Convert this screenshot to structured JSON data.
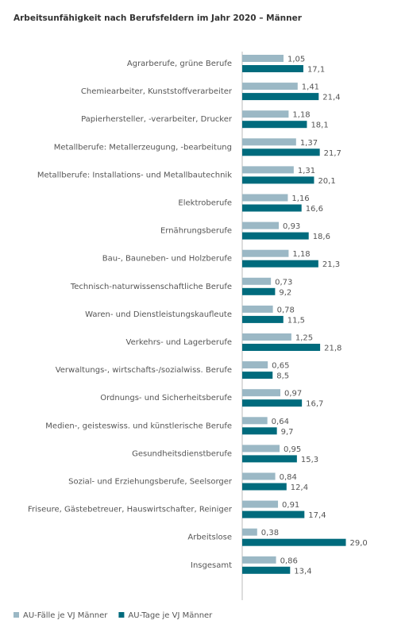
{
  "chart_data": {
    "type": "bar",
    "orientation": "horizontal",
    "title": "Arbeitsunfähigkeit nach Berufsfeldern im Jahr 2020 – Männer",
    "categories": [
      "Agrarberufe, grüne Berufe",
      "Chemiearbeiter, Kunststoffverarbeiter",
      "Papierhersteller, -verarbeiter, Drucker",
      "Metallberufe: Metallerzeugung, -bearbeitung",
      "Metallberufe: Installations- und Metallbautechnik",
      "Elektroberufe",
      "Ernährungsberufe",
      "Bau-, Bauneben- und Holzberufe",
      "Technisch-naturwissenschaftliche Berufe",
      "Waren- und Dienstleistungskaufleute",
      "Verkehrs- und Lagerberufe",
      "Verwaltungs-, wirtschafts-/sozialwiss. Berufe",
      "Ordnungs- und Sicherheitsberufe",
      "Medien-, geisteswiss. und künstlerische Berufe",
      "Gesundheitsdienstberufe",
      "Sozial- und Erziehungsberufe, Seelsorger",
      "Friseure, Gästebetreuer, Hauswirtschafter, Reiniger",
      "Arbeitslose",
      "Insgesamt"
    ],
    "series": [
      {
        "name": "AU-Fälle je VJ Männer",
        "color": "#9bb8c5",
        "values": [
          1.05,
          1.41,
          1.18,
          1.37,
          1.31,
          1.16,
          0.93,
          1.18,
          0.73,
          0.78,
          1.25,
          0.65,
          0.97,
          0.64,
          0.95,
          0.84,
          0.91,
          0.38,
          0.86
        ],
        "value_labels": [
          "1,05",
          "1,41",
          "1,18",
          "1,37",
          "1,31",
          "1,16",
          "0,93",
          "1,18",
          "0,73",
          "0,78",
          "1,25",
          "0,65",
          "0,97",
          "0,64",
          "0,95",
          "0,84",
          "0,91",
          "0,38",
          "0,86"
        ]
      },
      {
        "name": "AU-Tage je VJ Männer",
        "color": "#006b7d",
        "axis": "x2",
        "values": [
          17.1,
          21.4,
          18.1,
          21.7,
          20.1,
          16.6,
          18.6,
          21.3,
          9.2,
          11.5,
          21.8,
          8.5,
          16.7,
          9.7,
          15.3,
          12.4,
          17.4,
          29.0,
          13.4
        ],
        "value_labels": [
          "17,1",
          "21,4",
          "18,1",
          "21,7",
          "20,1",
          "16,6",
          "18,6",
          "21,3",
          "9,2",
          "11,5",
          "21,8",
          "8,5",
          "16,7",
          "9,7",
          "15,3",
          "12,4",
          "17,4",
          "29,0",
          "13,4"
        ]
      }
    ],
    "xlim": [
      0,
      4
    ],
    "x2lim": [
      0,
      44
    ],
    "legend": "bottom-left"
  }
}
